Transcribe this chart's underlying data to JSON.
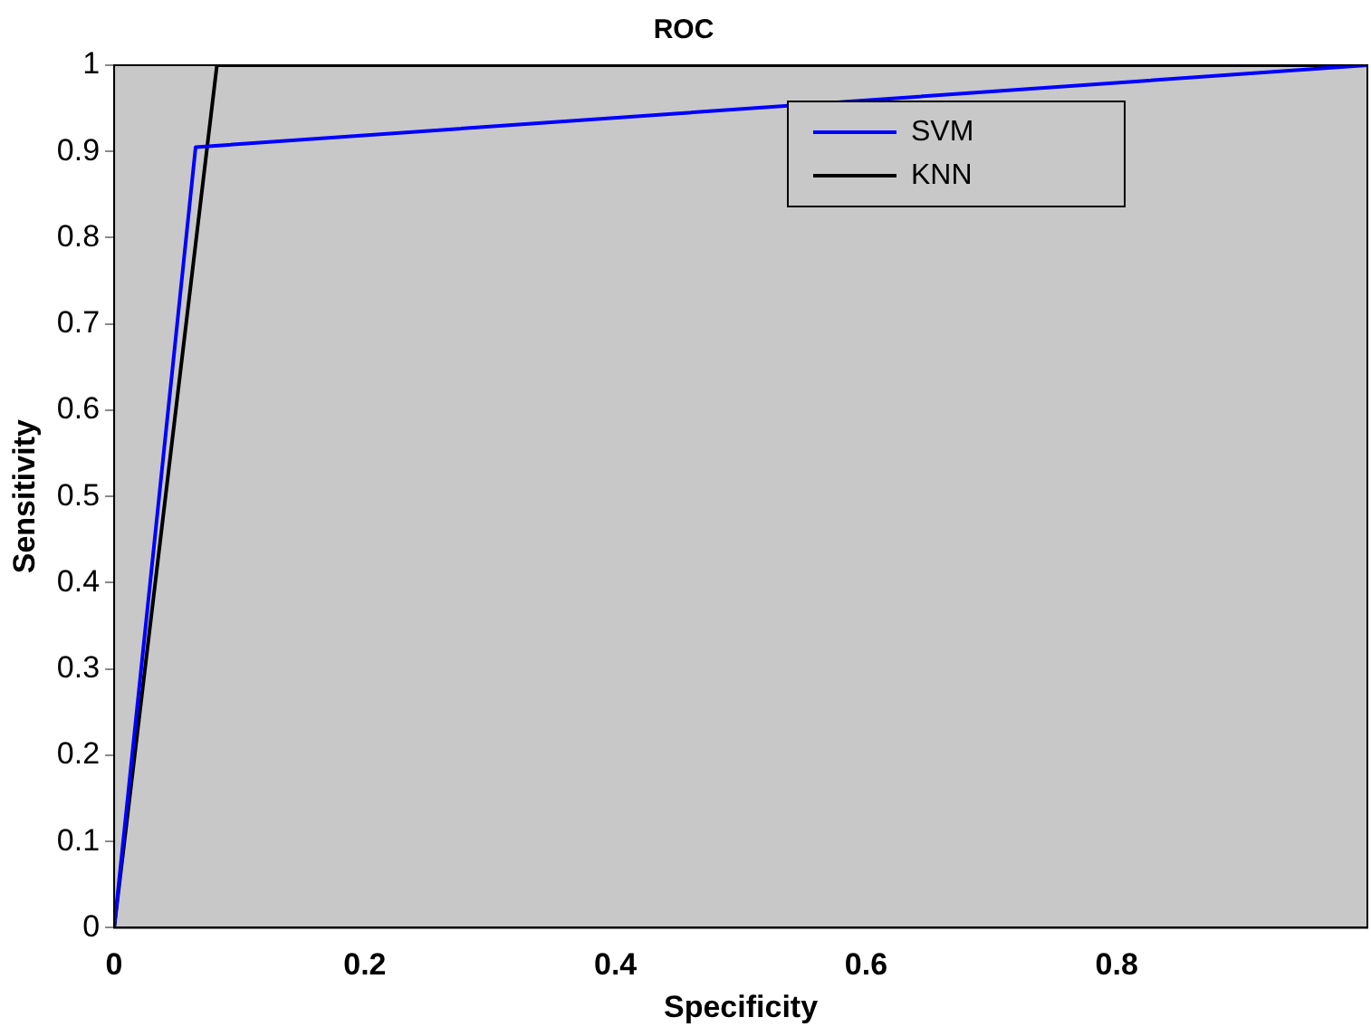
{
  "chart_data": {
    "type": "line",
    "title": "ROC",
    "xlabel": "Specificity",
    "ylabel": "Sensitivity",
    "xlim": [
      0,
      1
    ],
    "ylim": [
      0,
      1
    ],
    "xticks": [
      0,
      0.2,
      0.4,
      0.6,
      0.8
    ],
    "yticks": [
      0,
      0.1,
      0.2,
      0.3,
      0.4,
      0.5,
      0.6,
      0.7,
      0.8,
      0.9,
      1
    ],
    "series": [
      {
        "name": "SVM",
        "color": "#0000ff",
        "x": [
          0,
          0.065,
          1
        ],
        "values": [
          0,
          0.905,
          1
        ]
      },
      {
        "name": "KNN",
        "color": "#000000",
        "x": [
          0,
          0.082,
          1
        ],
        "values": [
          0,
          1,
          1
        ]
      }
    ],
    "legend": "top right",
    "grid": false,
    "marker": "none",
    "line_style": "solid"
  }
}
